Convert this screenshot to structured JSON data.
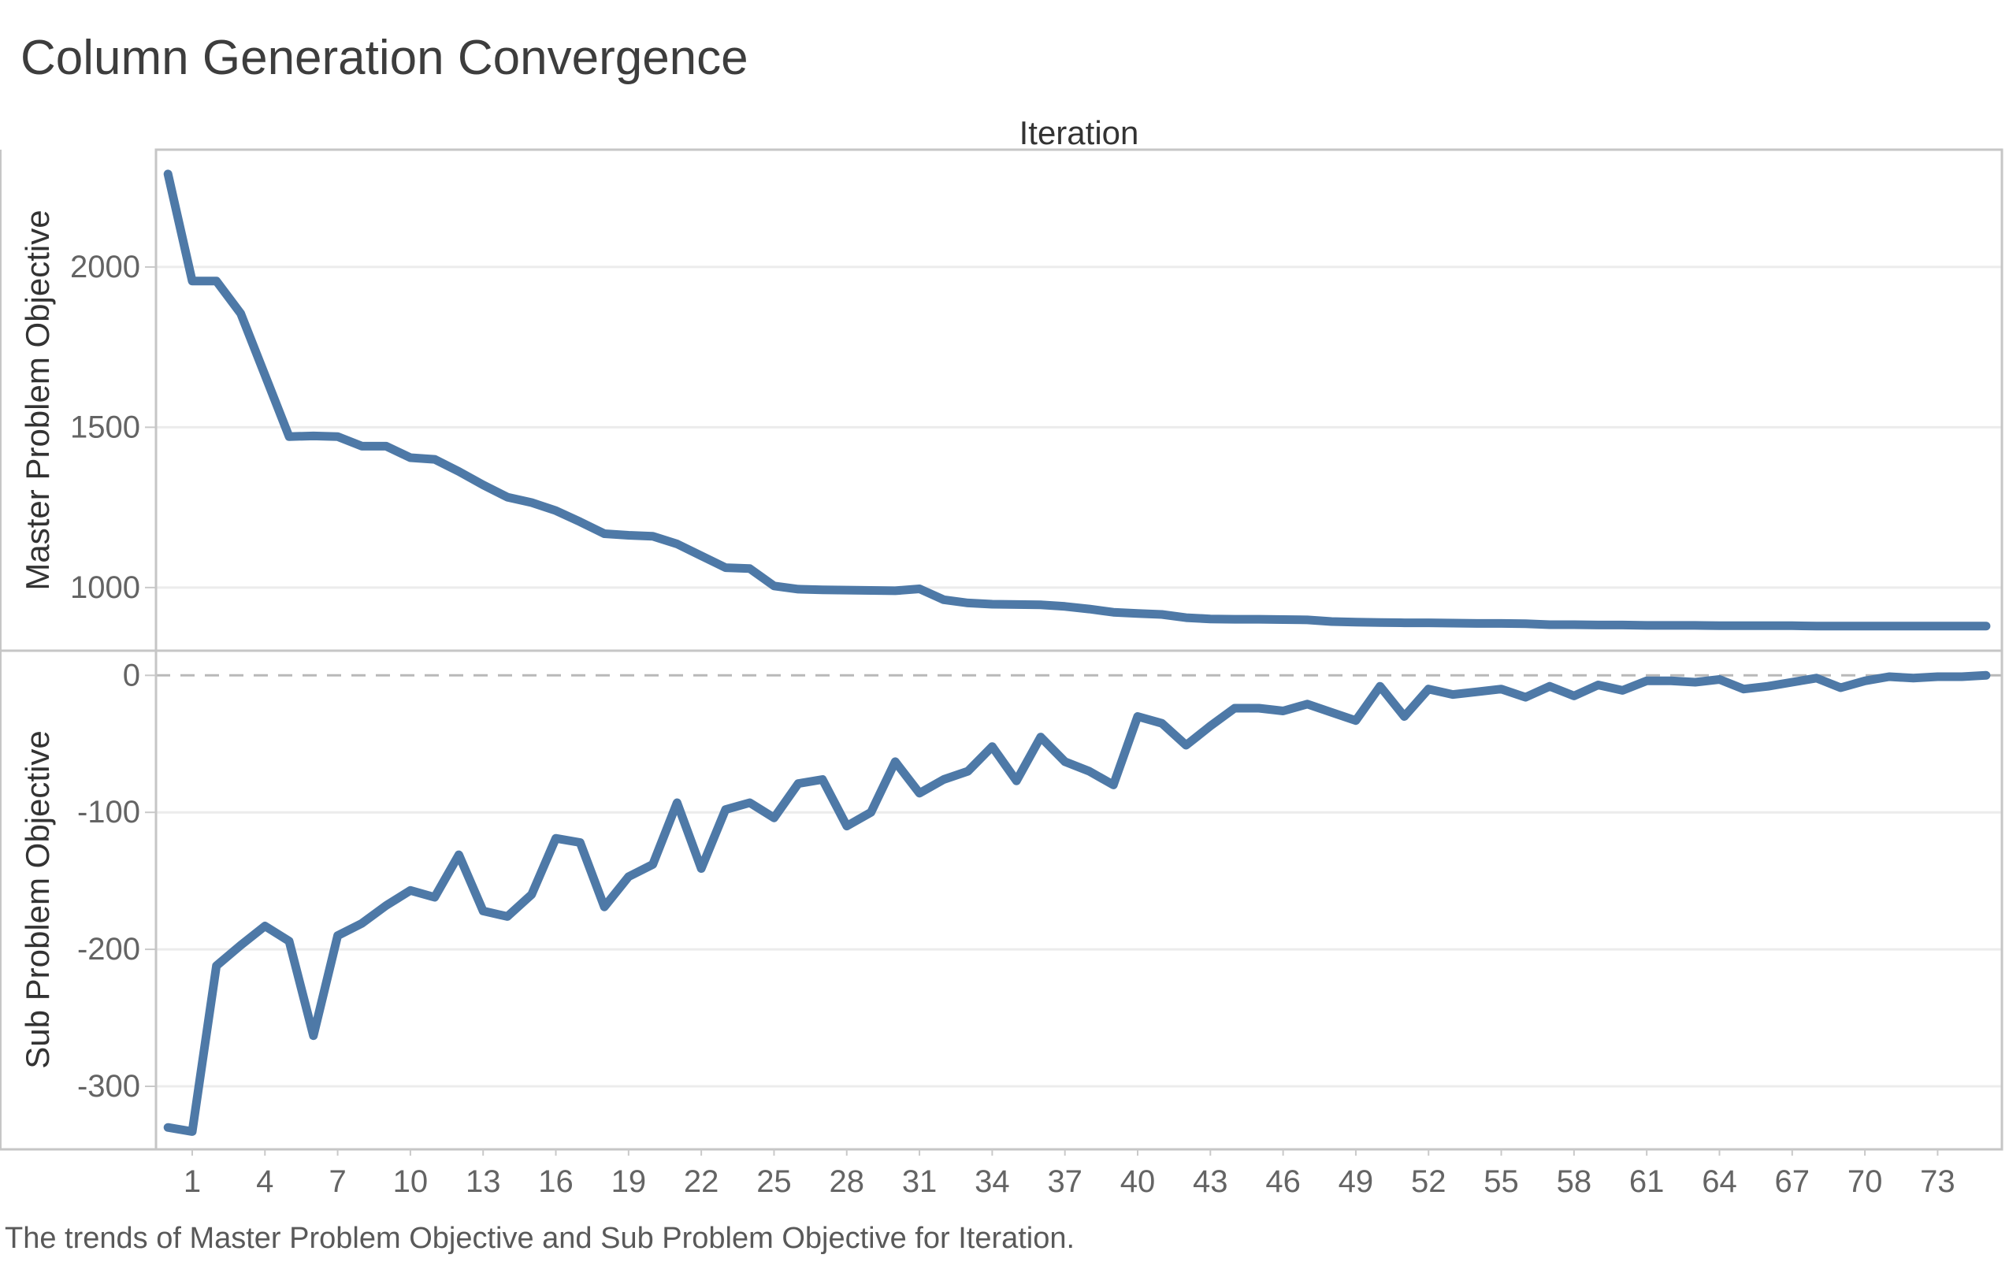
{
  "title": "Column Generation Convergence",
  "caption": "The trends of Master Problem Objective and Sub Problem Objective for Iteration.",
  "colors": {
    "line": "#4e79a7",
    "grid": "#ececec",
    "border": "#c6c6c6",
    "zero_line": "#b9b9b9",
    "tick_mark": "#c9c9c9",
    "tick_text": "#646464",
    "axis_label_text": "#333333",
    "title_text": "#3d3d3d",
    "caption_text": "#595959",
    "background": "#ffffff"
  },
  "chart_data": {
    "type": "line",
    "title": "Column Generation Convergence",
    "x_axis": {
      "title": "Iteration",
      "ticks": [
        1,
        4,
        7,
        10,
        13,
        16,
        19,
        22,
        25,
        28,
        31,
        34,
        37,
        40,
        43,
        46,
        49,
        52,
        55,
        58,
        61,
        64,
        67,
        70,
        73
      ],
      "range": [
        0,
        75
      ]
    },
    "x": [
      0,
      1,
      2,
      3,
      4,
      5,
      6,
      7,
      8,
      9,
      10,
      11,
      12,
      13,
      14,
      15,
      16,
      17,
      18,
      19,
      20,
      21,
      22,
      23,
      24,
      25,
      26,
      27,
      28,
      29,
      30,
      31,
      32,
      33,
      34,
      35,
      36,
      37,
      38,
      39,
      40,
      41,
      42,
      43,
      44,
      45,
      46,
      47,
      48,
      49,
      50,
      51,
      52,
      53,
      54,
      55,
      56,
      57,
      58,
      59,
      60,
      61,
      62,
      63,
      64,
      65,
      66,
      67,
      68,
      69,
      70,
      71,
      72,
      73,
      74,
      75
    ],
    "grid": "horizontal-only",
    "legend": "none",
    "panels": [
      {
        "ylabel": "Master Problem Objective",
        "yticks": [
          2000,
          1500,
          1000
        ],
        "ylim": [
          803,
          2366
        ],
        "zero_dashed": false,
        "series": {
          "name": "Master Problem Objective",
          "values": [
            2290,
            1956,
            1956,
            1855,
            1663,
            1471,
            1473,
            1471,
            1441,
            1441,
            1405,
            1400,
            1362,
            1320,
            1282,
            1265,
            1240,
            1205,
            1168,
            1163,
            1160,
            1136,
            1099,
            1062,
            1059,
            1005,
            995,
            993,
            992,
            991,
            990,
            996,
            962,
            952,
            948,
            947,
            946,
            941,
            933,
            923,
            919,
            916,
            906,
            902,
            901,
            901,
            900,
            899,
            894,
            892,
            891,
            890,
            890,
            889,
            888,
            888,
            887,
            884,
            884,
            883,
            883,
            882,
            882,
            882,
            881,
            881,
            881,
            881,
            880,
            880,
            880,
            880,
            880,
            880,
            880,
            880
          ]
        }
      },
      {
        "ylabel": "Sub Problem Objective",
        "yticks": [
          0,
          -100,
          -200,
          -300
        ],
        "ylim": [
          -346,
          18
        ],
        "zero_dashed": true,
        "series": {
          "name": "Sub Problem Objective",
          "values": [
            -330,
            -333,
            -212,
            -197,
            -183,
            -194,
            -263,
            -190,
            -181,
            -168,
            -157,
            -162,
            -131,
            -172,
            -176,
            -160,
            -119,
            -122,
            -169,
            -147,
            -138,
            -93,
            -141,
            -98,
            -93,
            -104,
            -79,
            -76,
            -110,
            -100,
            -63,
            -86,
            -76,
            -70,
            -52,
            -77,
            -45,
            -63,
            -70,
            -80,
            -30,
            -35,
            -51,
            -37,
            -24,
            -24,
            -26,
            -21,
            -27,
            -33,
            -8,
            -30,
            -10,
            -14,
            -12,
            -10,
            -16,
            -8,
            -15,
            -7,
            -11,
            -4,
            -4,
            -5,
            -3,
            -10,
            -8,
            -5,
            -2,
            -9,
            -4,
            -1,
            -2,
            -1,
            -1,
            0
          ]
        }
      }
    ]
  }
}
